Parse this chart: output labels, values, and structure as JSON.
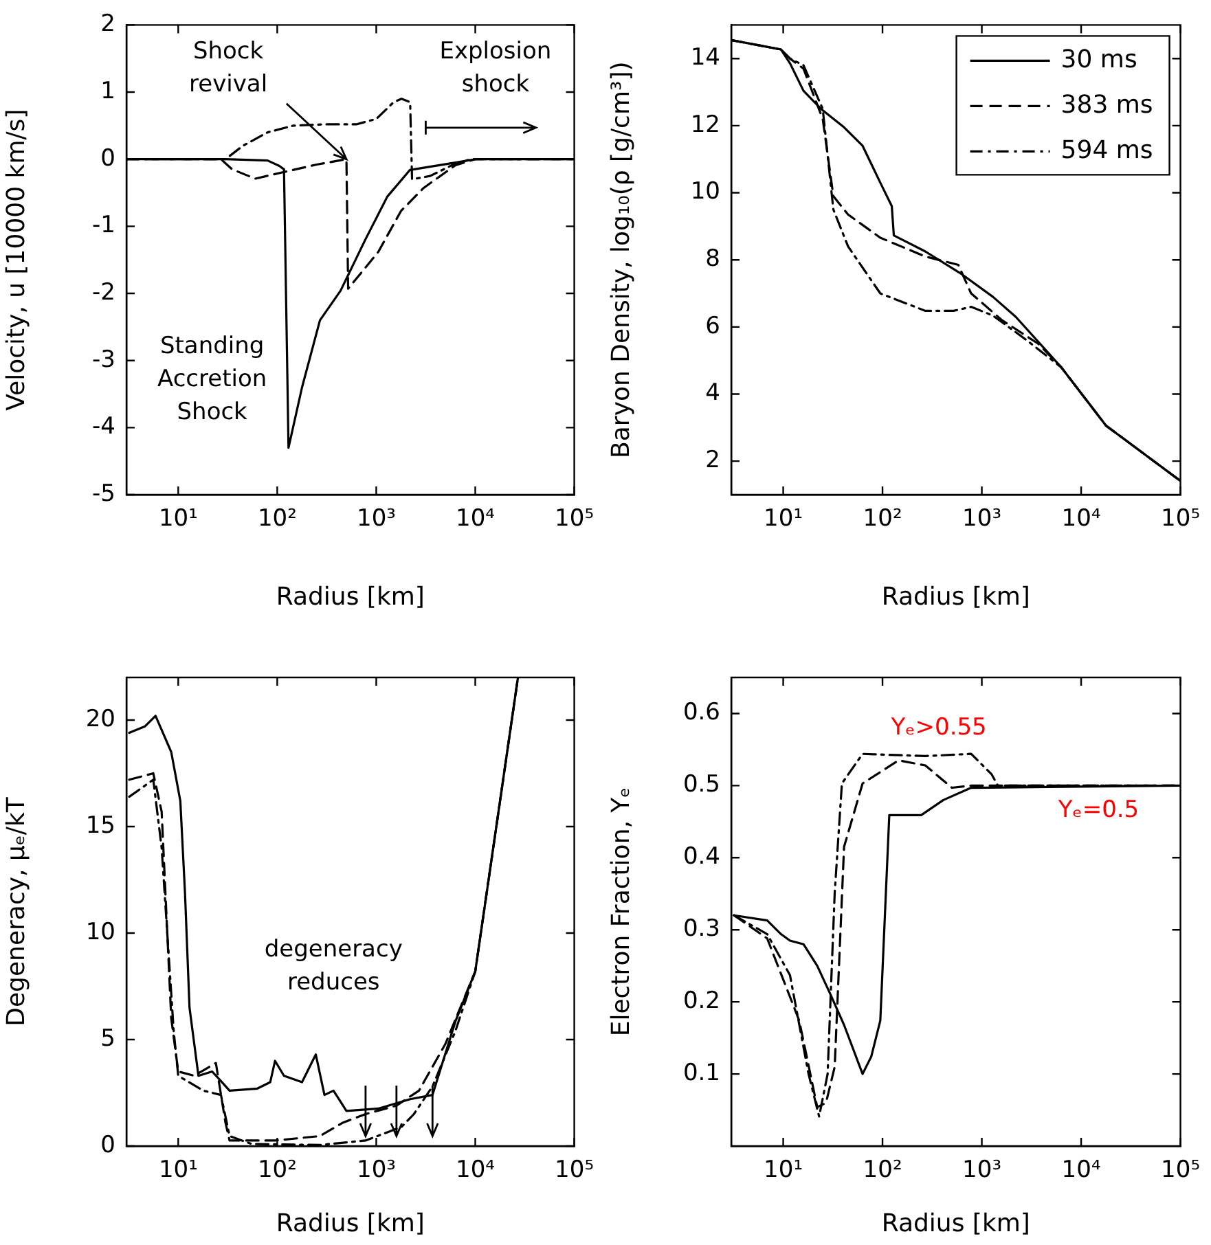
{
  "chart_data": [
    {
      "type": "line",
      "xlabel": "Radius [km]",
      "ylabel": "Velocity, u [10000 km/s]",
      "log": "x",
      "grid": false,
      "legend": false,
      "xlim": [
        3,
        100000
      ],
      "ylim": [
        -5,
        2
      ],
      "xticks": [
        {
          "value": 10,
          "label": "10¹"
        },
        {
          "value": 100,
          "label": "10²"
        },
        {
          "value": 1000,
          "label": "10³"
        },
        {
          "value": 10000,
          "label": "10⁴"
        },
        {
          "value": 100000,
          "label": "10⁵"
        }
      ],
      "yticks": [
        -5,
        -4,
        -3,
        -2,
        -1,
        0,
        1,
        2
      ],
      "series": [
        {
          "color": "#000000",
          "line_style": "solid",
          "x": [
            3,
            30,
            80,
            105,
            117,
            130,
            178,
            270,
            436,
            775,
            1290,
            2190,
            6300,
            10000,
            100000
          ],
          "values": [
            0,
            0,
            -0.02,
            -0.1,
            -0.15,
            -4.3,
            -3.4,
            -2.4,
            -1.96,
            -1.2,
            -0.56,
            -0.16,
            -0.05,
            0,
            0
          ]
        },
        {
          "color": "#000000",
          "line_style": "dashed",
          "x": [
            3,
            27,
            35,
            60,
            110,
            250,
            500,
            520,
            1050,
            1780,
            3000,
            6300,
            10000,
            100000
          ],
          "values": [
            0,
            0,
            -0.15,
            -0.29,
            -0.2,
            -0.08,
            0,
            -1.93,
            -1.38,
            -0.77,
            -0.43,
            -0.09,
            0,
            0
          ]
        },
        {
          "color": "#000000",
          "line_style": "dashdot",
          "x": [
            3,
            30,
            45,
            80,
            145,
            300,
            630,
            1000,
            1500,
            1800,
            2200,
            2300,
            3500,
            6000,
            9000,
            100000
          ],
          "values": [
            0,
            0,
            0.2,
            0.4,
            0.5,
            0.52,
            0.52,
            0.6,
            0.85,
            0.9,
            0.85,
            -0.3,
            -0.25,
            -0.08,
            0,
            0
          ]
        }
      ],
      "annotations": [
        {
          "text": "Shock revival",
          "x": 500,
          "y": 0
        },
        "Explosion shock",
        "Standing Accretion Shock"
      ]
    },
    {
      "type": "line",
      "xlabel": "Radius [km]",
      "ylabel": "Baryon Density, log₁₀(ρ [g/cm³])",
      "log": "x",
      "grid": false,
      "legend": "top right",
      "xlim": [
        3,
        100000
      ],
      "ylim": [
        1,
        15
      ],
      "xticks": [
        {
          "value": 10,
          "label": "10¹"
        },
        {
          "value": 100,
          "label": "10²"
        },
        {
          "value": 1000,
          "label": "10³"
        },
        {
          "value": 10000,
          "label": "10⁴"
        },
        {
          "value": 100000,
          "label": "10⁵"
        }
      ],
      "yticks": [
        2,
        4,
        6,
        8,
        10,
        12,
        14
      ],
      "series": [
        {
          "name": "30 ms",
          "color": "#000000",
          "line_style": "solid",
          "x": [
            3,
            9.5,
            11.7,
            16,
            24,
            41,
            63,
            95,
            124,
            130,
            270,
            630,
            1290,
            2200,
            6300,
            17800,
            100000
          ],
          "values": [
            14.55,
            14.27,
            13.86,
            13.04,
            12.5,
            11.95,
            11.4,
            10.3,
            9.6,
            8.73,
            8.25,
            7.57,
            6.9,
            6.3,
            4.8,
            3.06,
            1.41
          ]
        },
        {
          "name": "383 ms",
          "color": "#000000",
          "line_style": "dashed",
          "x": [
            3,
            9.5,
            11.7,
            16,
            25,
            32,
            45,
            95,
            270,
            580,
            780,
            1600,
            3700,
            6300,
            17800,
            100000
          ],
          "values": [
            14.55,
            14.27,
            14.0,
            13.7,
            12.2,
            9.9,
            9.35,
            8.66,
            8.1,
            7.85,
            7.0,
            6.2,
            5.5,
            4.8,
            3.06,
            1.41
          ]
        },
        {
          "name": "594 ms",
          "color": "#000000",
          "line_style": "dashdot",
          "x": [
            3,
            9.5,
            11.7,
            16,
            25,
            32,
            45,
            95,
            270,
            520,
            780,
            1290,
            2700,
            6300,
            17800,
            100000
          ],
          "values": [
            14.55,
            14.27,
            14.0,
            13.8,
            12.5,
            9.5,
            8.4,
            7.0,
            6.48,
            6.48,
            6.6,
            6.34,
            5.65,
            4.8,
            3.06,
            1.41
          ]
        }
      ]
    },
    {
      "type": "line",
      "xlabel": "Radius [km]",
      "ylabel": "Degeneracy, μₑ/kT",
      "log": "x",
      "grid": false,
      "legend": false,
      "xlim": [
        3,
        100000
      ],
      "ylim": [
        0,
        22
      ],
      "xticks": [
        {
          "value": 10,
          "label": "10¹"
        },
        {
          "value": 100,
          "label": "10²"
        },
        {
          "value": 1000,
          "label": "10³"
        },
        {
          "value": 10000,
          "label": "10⁴"
        },
        {
          "value": 100000,
          "label": "10⁵"
        }
      ],
      "yticks": [
        0,
        5,
        10,
        15,
        20
      ],
      "series": [
        {
          "color": "#000000",
          "line_style": "solid",
          "x": [
            3.2,
            4.6,
            5.9,
            8.5,
            10.5,
            11.7,
            13,
            16,
            22,
            27,
            33,
            63,
            85,
            95,
            117,
            178,
            245,
            300,
            370,
            500,
            1050,
            2200,
            3700,
            6300,
            10000,
            17800,
            27000
          ],
          "values": [
            19.4,
            19.7,
            20.2,
            18.5,
            16.2,
            11.9,
            6.5,
            3.3,
            3.5,
            3.05,
            2.6,
            2.7,
            3.0,
            4.0,
            3.3,
            3.0,
            4.3,
            2.4,
            2.6,
            1.65,
            1.76,
            2.2,
            2.4,
            5.85,
            8.2,
            16.2,
            22
          ]
        },
        {
          "color": "#000000",
          "line_style": "dashed",
          "x": [
            3.2,
            5.6,
            6.8,
            8.5,
            10,
            14.5,
            24,
            30,
            33,
            95,
            270,
            460,
            780,
            1600,
            2700,
            5000,
            10000,
            17800,
            27000
          ],
          "values": [
            17.2,
            17.5,
            15.7,
            6.0,
            3.5,
            3.3,
            3.9,
            1.1,
            0.26,
            0.26,
            0.47,
            1.1,
            1.5,
            1.9,
            2.6,
            4.8,
            8.2,
            16.2,
            22
          ]
        },
        {
          "color": "#000000",
          "line_style": "dashdot",
          "x": [
            3.2,
            5.6,
            6.8,
            9,
            10,
            18,
            27,
            33,
            55,
            270,
            780,
            1800,
            2400,
            3700,
            6300,
            10000,
            17800,
            27000
          ],
          "values": [
            16.4,
            17.2,
            14,
            5.4,
            3.3,
            2.6,
            2.4,
            0.47,
            0.1,
            0.05,
            0.26,
            0.9,
            1.5,
            2.8,
            5.4,
            8.2,
            16.2,
            22
          ]
        }
      ],
      "annotations": [
        "degeneracy reduces"
      ]
    },
    {
      "type": "line",
      "xlabel": "Radius [km]",
      "ylabel": "Electron Fraction, Yₑ",
      "log": "x",
      "grid": false,
      "legend": false,
      "xlim": [
        3,
        100000
      ],
      "ylim": [
        0,
        0.65
      ],
      "xticks": [
        {
          "value": 10,
          "label": "10¹"
        },
        {
          "value": 100,
          "label": "10²"
        },
        {
          "value": 1000,
          "label": "10³"
        },
        {
          "value": 10000,
          "label": "10⁴"
        },
        {
          "value": 100000,
          "label": "10⁵"
        }
      ],
      "yticks": [
        0.1,
        0.2,
        0.3,
        0.4,
        0.5,
        0.6
      ],
      "series": [
        {
          "color": "#000000",
          "line_style": "solid",
          "x": [
            3.2,
            6.9,
            9.5,
            11.7,
            16,
            22,
            30,
            41,
            63,
            77,
            95,
            117,
            245,
            410,
            780,
            100000
          ],
          "values": [
            0.32,
            0.313,
            0.294,
            0.285,
            0.28,
            0.25,
            0.21,
            0.168,
            0.1,
            0.124,
            0.174,
            0.459,
            0.459,
            0.48,
            0.497,
            0.5
          ]
        },
        {
          "color": "#000000",
          "line_style": "dashed",
          "x": [
            3.2,
            6.9,
            14.5,
            22,
            27,
            33,
            41,
            63,
            145,
            270,
            500,
            780,
            100000
          ],
          "values": [
            0.32,
            0.288,
            0.174,
            0.054,
            0.06,
            0.11,
            0.415,
            0.503,
            0.535,
            0.528,
            0.497,
            0.5,
            0.5
          ]
        },
        {
          "color": "#000000",
          "line_style": "dashdot",
          "x": [
            3.2,
            6.9,
            11.7,
            18,
            23,
            28,
            33,
            39,
            63,
            270,
            780,
            1250,
            1450,
            100000
          ],
          "values": [
            0.32,
            0.294,
            0.237,
            0.1,
            0.041,
            0.1,
            0.351,
            0.503,
            0.544,
            0.541,
            0.544,
            0.516,
            0.5,
            0.5
          ]
        }
      ],
      "annotations": [
        "Yₑ>0.55",
        "Yₑ=0.5"
      ]
    }
  ]
}
